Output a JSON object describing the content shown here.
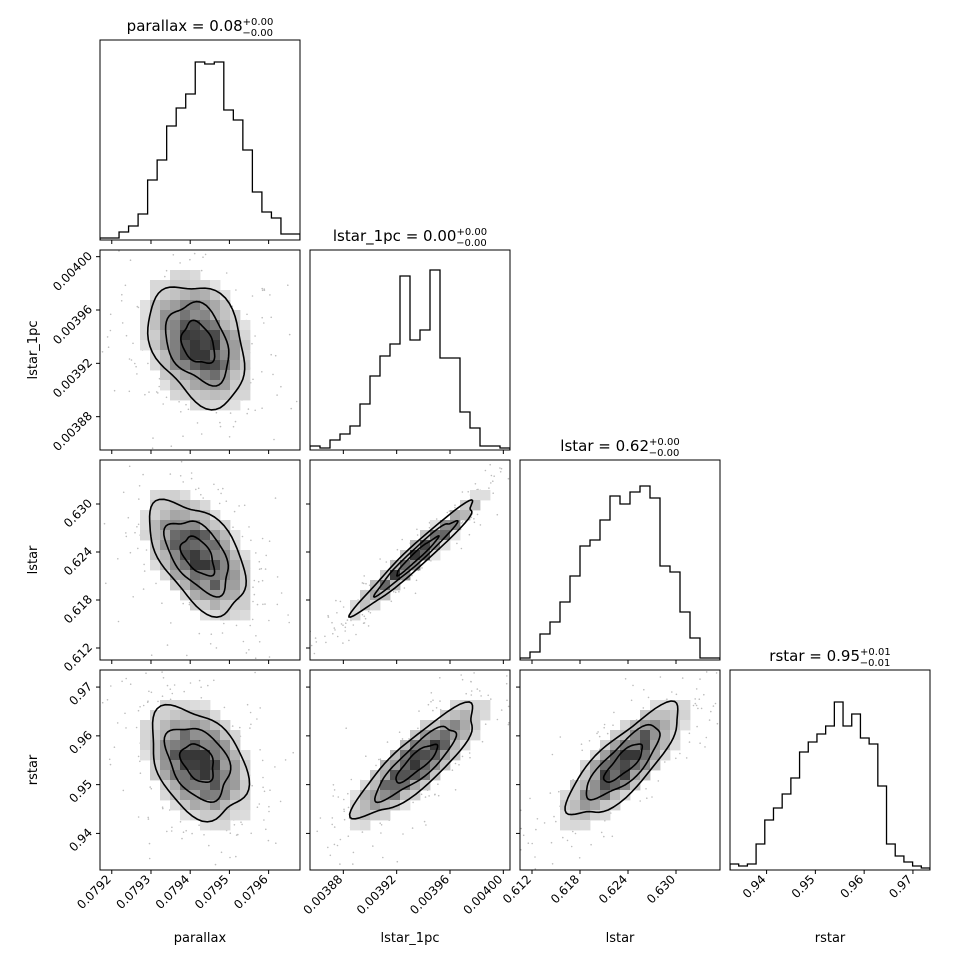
{
  "chart_data": {
    "type": "corner",
    "parameters": [
      "parallax",
      "lstar_1pc",
      "lstar",
      "rstar"
    ],
    "titles": [
      {
        "main": "parallax = 0.08",
        "sup": "+0.00",
        "sub": "−0.00"
      },
      {
        "main": "lstar_1pc = 0.00",
        "sup": "+0.00",
        "sub": "−0.00"
      },
      {
        "main": "lstar = 0.62",
        "sup": "+0.00",
        "sub": "−0.00"
      },
      {
        "main": "rstar = 0.95",
        "sup": "+0.01",
        "sub": "−0.01"
      }
    ],
    "ranges": [
      [
        0.07917,
        0.07968
      ],
      [
        0.003855,
        0.004005
      ],
      [
        0.6105,
        0.6355
      ],
      [
        0.9325,
        0.9735
      ]
    ],
    "ticks": [
      [
        0.0792,
        0.0793,
        0.0794,
        0.0795,
        0.0796
      ],
      [
        0.00388,
        0.00392,
        0.00396,
        0.004
      ],
      [
        0.612,
        0.618,
        0.624,
        0.63
      ],
      [
        0.94,
        0.95,
        0.96,
        0.97
      ]
    ],
    "tick_labels": [
      [
        "0.0792",
        "0.0793",
        "0.0794",
        "0.0795",
        "0.0796"
      ],
      [
        "0.00388",
        "0.00392",
        "0.00396",
        "0.00400"
      ],
      [
        "0.612",
        "0.618",
        "0.624",
        "0.630"
      ],
      [
        "0.94",
        "0.95",
        "0.96",
        "0.97"
      ]
    ],
    "histograms": [
      [
        0.01,
        0.01,
        0.04,
        0.07,
        0.13,
        0.3,
        0.4,
        0.57,
        0.66,
        0.73,
        0.89,
        0.88,
        0.89,
        0.65,
        0.6,
        0.45,
        0.24,
        0.14,
        0.11,
        0.03,
        0.03
      ],
      [
        0.02,
        0.01,
        0.05,
        0.08,
        0.12,
        0.23,
        0.37,
        0.47,
        0.53,
        0.87,
        0.55,
        0.6,
        0.9,
        0.46,
        0.46,
        0.19,
        0.11,
        0.02,
        0.02,
        0.01
      ],
      [
        0.01,
        0.04,
        0.13,
        0.19,
        0.29,
        0.42,
        0.57,
        0.6,
        0.7,
        0.82,
        0.78,
        0.84,
        0.87,
        0.81,
        0.47,
        0.44,
        0.24,
        0.11,
        0.01,
        0.01
      ],
      [
        0.03,
        0.02,
        0.03,
        0.13,
        0.25,
        0.31,
        0.38,
        0.46,
        0.59,
        0.64,
        0.68,
        0.72,
        0.84,
        0.72,
        0.78,
        0.66,
        0.63,
        0.42,
        0.13,
        0.07,
        0.04,
        0.02,
        0.01
      ]
    ],
    "correlations": [
      [
        1,
        -0.3,
        -0.5,
        -0.35
      ],
      [
        -0.3,
        1,
        0.97,
        0.85
      ],
      [
        -0.5,
        0.97,
        1,
        0.8
      ],
      [
        -0.35,
        0.85,
        0.8,
        1
      ]
    ],
    "centers": [
      0.07942,
      0.003935,
      0.6235,
      0.9545
    ],
    "sigmas": [
      7e-05,
      2.6e-05,
      0.004,
      0.0065
    ],
    "grid": false
  }
}
